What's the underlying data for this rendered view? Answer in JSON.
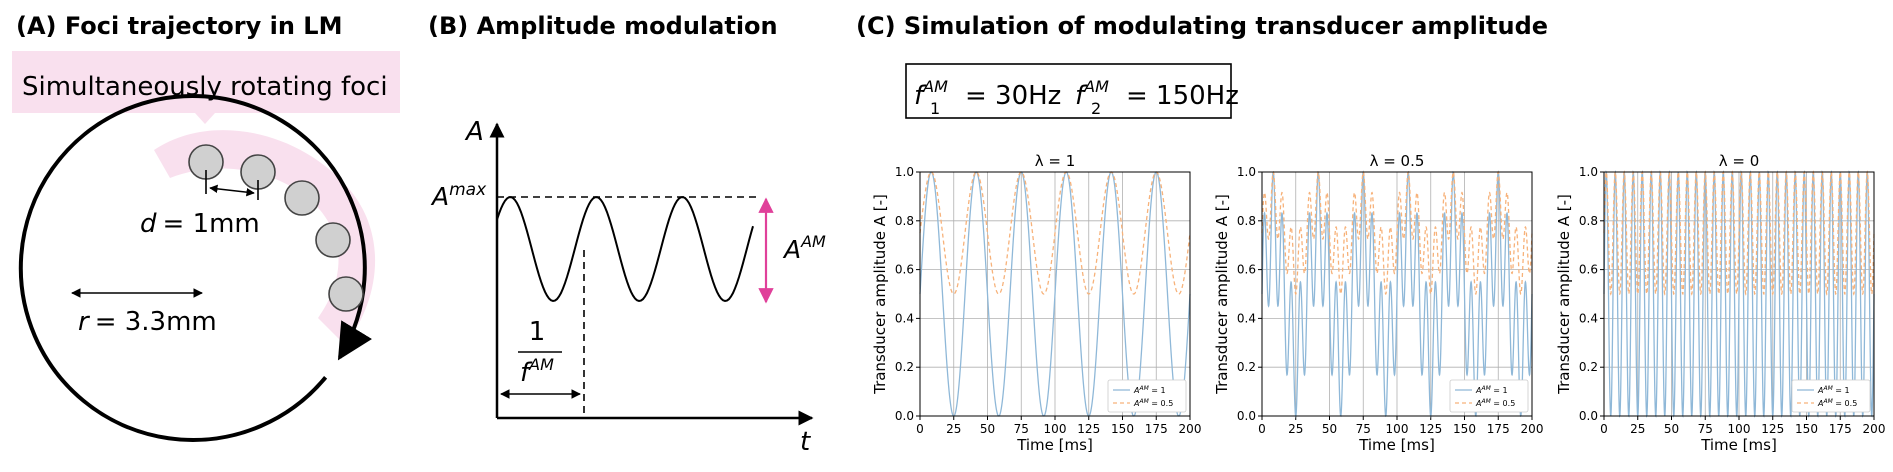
{
  "panelA": {
    "title": "(A) Foci trajectory in LM",
    "callout": "Simultaneously rotating foci",
    "d_label": "d",
    "d_value": "= 1mm",
    "r_label": "r",
    "r_value": "= 3.3mm",
    "foci_count": 5,
    "highlight_color": "#f9e0ee"
  },
  "panelB": {
    "title": "(B) Amplitude modulation",
    "y_axis": "A",
    "x_axis": "t",
    "amax_base": "A",
    "amax_sup": "max",
    "aam_base": "A",
    "aam_sup": "AM",
    "period_num": "1",
    "period_den_base": "f",
    "period_den_sup": "AM",
    "arrow_color": "#e0409a"
  },
  "panelC": {
    "title": "(C) Simulation of modulating transducer amplitude",
    "box": {
      "f1_base": "f",
      "f1_sub": "1",
      "f1_sup": "AM",
      "f1_value": "= 30Hz",
      "f2_base": "f",
      "f2_sub": "2",
      "f2_sup": "AM",
      "f2_value": "= 150Hz"
    }
  },
  "chart_data": [
    {
      "type": "line",
      "title": "λ = 1",
      "lambda": 1,
      "xlabel": "Time [ms]",
      "ylabel": "Transducer amplitude A [-]",
      "xlim": [
        0,
        200
      ],
      "ylim": [
        0.0,
        1.0
      ],
      "xticks": [
        "0",
        "25",
        "50",
        "75",
        "100",
        "125",
        "150",
        "175",
        "200"
      ],
      "yticks": [
        "0.0",
        "0.2",
        "0.4",
        "0.6",
        "0.8",
        "1.0"
      ],
      "grid": true,
      "legend": "bottom-right",
      "series": [
        {
          "name": "A^AM = 1",
          "legend_base": "A",
          "legend_sup": "AM",
          "legend_value": " = 1",
          "color": "#8fb8d8",
          "style": "solid",
          "A_AM": 1
        },
        {
          "name": "A^AM = 0.5",
          "legend_base": "A",
          "legend_sup": "AM",
          "legend_value": " = 0.5",
          "color": "#f7b27a",
          "style": "dashed",
          "A_AM": 0.5
        }
      ]
    },
    {
      "type": "line",
      "title": "λ = 0.5",
      "lambda": 0.5,
      "xlabel": "Time [ms]",
      "ylabel": "Transducer amplitude A [-]",
      "xlim": [
        0,
        200
      ],
      "ylim": [
        0.0,
        1.0
      ],
      "xticks": [
        "0",
        "25",
        "50",
        "75",
        "100",
        "125",
        "150",
        "175",
        "200"
      ],
      "yticks": [
        "0.0",
        "0.2",
        "0.4",
        "0.6",
        "0.8",
        "1.0"
      ],
      "grid": true,
      "legend": "bottom-right",
      "series": [
        {
          "name": "A^AM = 1",
          "legend_base": "A",
          "legend_sup": "AM",
          "legend_value": " = 1",
          "color": "#8fb8d8",
          "style": "solid",
          "A_AM": 1
        },
        {
          "name": "A^AM = 0.5",
          "legend_base": "A",
          "legend_sup": "AM",
          "legend_value": " = 0.5",
          "color": "#f7b27a",
          "style": "dashed",
          "A_AM": 0.5
        }
      ]
    },
    {
      "type": "line",
      "title": "λ = 0",
      "lambda": 0,
      "xlabel": "Time [ms]",
      "ylabel": "Transducer amplitude A [-]",
      "xlim": [
        0,
        200
      ],
      "ylim": [
        0.0,
        1.0
      ],
      "xticks": [
        "0",
        "25",
        "50",
        "75",
        "100",
        "125",
        "150",
        "175",
        "200"
      ],
      "yticks": [
        "0.0",
        "0.2",
        "0.4",
        "0.6",
        "0.8",
        "1.0"
      ],
      "grid": true,
      "legend": "bottom-right",
      "series": [
        {
          "name": "A^AM = 1",
          "legend_base": "A",
          "legend_sup": "AM",
          "legend_value": " = 1",
          "color": "#8fb8d8",
          "style": "solid",
          "A_AM": 1
        },
        {
          "name": "A^AM = 0.5",
          "legend_base": "A",
          "legend_sup": "AM",
          "legend_value": " = 0.5",
          "color": "#f7b27a",
          "style": "dashed",
          "A_AM": 0.5
        }
      ]
    }
  ]
}
